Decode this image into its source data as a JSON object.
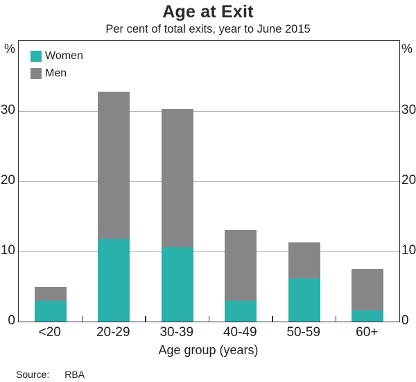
{
  "header": {
    "title": "Age at Exit",
    "subtitle": "Per cent of total exits, year to June 2015"
  },
  "chart_data": {
    "type": "bar",
    "stacked": true,
    "title": "Age at Exit",
    "subtitle": "Per cent of total exits, year to June 2015",
    "categories": [
      "<20",
      "20-29",
      "30-39",
      "40-49",
      "50-59",
      "60+"
    ],
    "series": [
      {
        "name": "Women",
        "color": "#2ab1a9",
        "values": [
          3.0,
          11.8,
          10.6,
          3.0,
          6.1,
          1.6
        ]
      },
      {
        "name": "Men",
        "color": "#868689",
        "values": [
          2.0,
          21.0,
          19.7,
          10.1,
          5.2,
          5.9
        ]
      }
    ],
    "totals": [
      5.0,
      32.8,
      30.3,
      13.1,
      11.3,
      7.5
    ],
    "xlabel": "Age group (years)",
    "ylabel_left": "%",
    "ylabel_right": "%",
    "ylim": [
      0,
      40
    ],
    "yticks": [
      0,
      10,
      20,
      30
    ],
    "grid": true,
    "gridline_color": "#b4b4b4",
    "frame_color": "#2e2e2e",
    "legend_position": "top-left"
  },
  "footer": {
    "source_label": "Source:",
    "source_value": "RBA"
  }
}
